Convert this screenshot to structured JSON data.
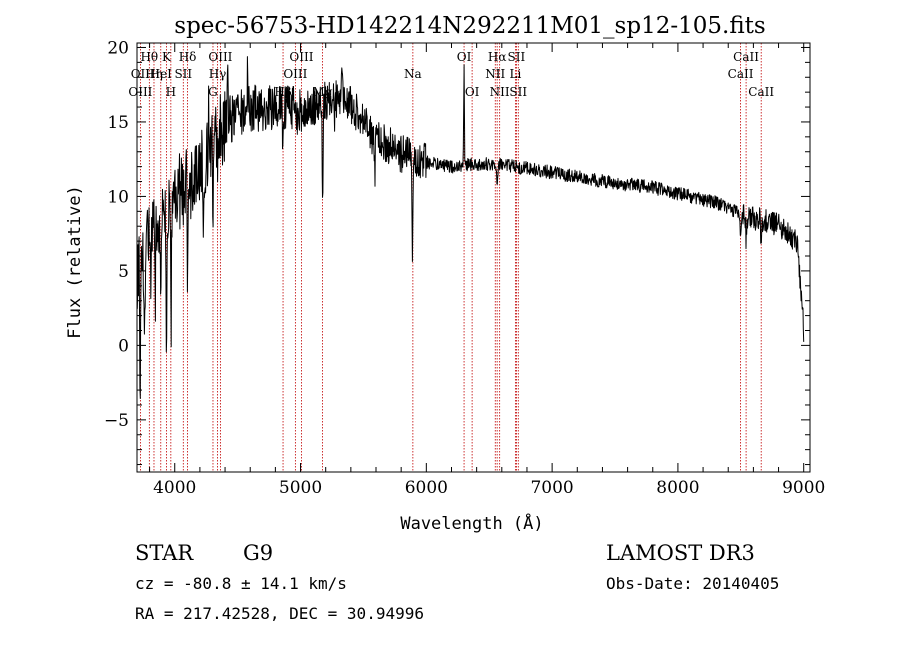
{
  "chart_data": {
    "type": "line",
    "title": "spec-56753-HD142214N292211M01_sp12-105.fits",
    "xlabel": "Wavelength (Å)",
    "ylabel": "Flux (relative)",
    "xlim": [
      3700,
      9050
    ],
    "ylim": [
      -8.5,
      20.3
    ],
    "xticks": [
      4000,
      5000,
      6000,
      7000,
      8000,
      9000
    ],
    "yticks": [
      -5,
      0,
      5,
      10,
      15,
      20
    ],
    "series": [
      {
        "name": "flux",
        "continuum": [
          [
            3700,
            5.0
          ],
          [
            3800,
            7.5
          ],
          [
            3900,
            8.8
          ],
          [
            4000,
            10.0
          ],
          [
            4100,
            10.8
          ],
          [
            4200,
            11.8
          ],
          [
            4300,
            13.3
          ],
          [
            4400,
            15.0
          ],
          [
            4600,
            15.9
          ],
          [
            4800,
            16.0
          ],
          [
            4900,
            16.0
          ],
          [
            5000,
            15.6
          ],
          [
            5100,
            16.0
          ],
          [
            5200,
            16.4
          ],
          [
            5300,
            16.6
          ],
          [
            5400,
            16.2
          ],
          [
            5500,
            14.9
          ],
          [
            5600,
            13.8
          ],
          [
            5700,
            13.4
          ],
          [
            5800,
            12.9
          ],
          [
            5900,
            12.6
          ],
          [
            6000,
            12.3
          ],
          [
            6200,
            12.0
          ],
          [
            6400,
            12.2
          ],
          [
            6600,
            12.1
          ],
          [
            6800,
            11.9
          ],
          [
            7000,
            11.6
          ],
          [
            7200,
            11.3
          ],
          [
            7500,
            10.9
          ],
          [
            7800,
            10.6
          ],
          [
            8000,
            10.2
          ],
          [
            8300,
            9.6
          ],
          [
            8500,
            8.8
          ],
          [
            8800,
            8.1
          ],
          [
            8950,
            6.8
          ],
          [
            9000,
            1.0
          ]
        ],
        "dips": [
          [
            3725,
            7.5
          ],
          [
            3760,
            6.5
          ],
          [
            3810,
            5.5
          ],
          [
            3845,
            6.5
          ],
          [
            3890,
            7.0
          ],
          [
            3935,
            11.0
          ],
          [
            3970,
            9.0
          ],
          [
            4102,
            5.5
          ],
          [
            4226,
            4.0
          ],
          [
            4305,
            4.5
          ],
          [
            4340,
            3.5
          ],
          [
            4861,
            2.5
          ],
          [
            5175,
            7.0
          ],
          [
            5270,
            2.5
          ],
          [
            5590,
            2.5
          ],
          [
            5890,
            7.0
          ],
          [
            6563,
            1.5
          ],
          [
            8498,
            1.5
          ],
          [
            8542,
            1.5
          ],
          [
            8662,
            1.5
          ]
        ],
        "peaks": [
          [
            6300,
            6.5
          ],
          [
            4270,
            3.5
          ],
          [
            4420,
            3.0
          ],
          [
            4580,
            3.0
          ],
          [
            5330,
            2.5
          ]
        ]
      }
    ],
    "annotations": [
      {
        "label": "Hθ",
        "x": 3798,
        "row": 0
      },
      {
        "label": "K",
        "x": 3934,
        "row": 0
      },
      {
        "label": "Hδ",
        "x": 4102,
        "row": 0
      },
      {
        "label": "OIII",
        "x": 4363,
        "row": 0
      },
      {
        "label": "OIII",
        "x": 5007,
        "row": 0
      },
      {
        "label": "OI",
        "x": 6300,
        "row": 0
      },
      {
        "label": "Hα",
        "x": 6563,
        "row": 0
      },
      {
        "label": "SII",
        "x": 6716,
        "row": 0
      },
      {
        "label": "CaII",
        "x": 8542,
        "row": 0
      },
      {
        "label": "OII",
        "x": 3727,
        "row": 1
      },
      {
        "label": "Hη",
        "x": 3835,
        "row": 1
      },
      {
        "label": "HeI",
        "x": 3889,
        "row": 1
      },
      {
        "label": "SII",
        "x": 4068,
        "row": 1
      },
      {
        "label": "Hγ",
        "x": 4340,
        "row": 1
      },
      {
        "label": "OIII",
        "x": 4959,
        "row": 1
      },
      {
        "label": "Na",
        "x": 5893,
        "row": 1
      },
      {
        "label": "NII",
        "x": 6548,
        "row": 1
      },
      {
        "label": "Li",
        "x": 6708,
        "row": 1
      },
      {
        "label": "CaII",
        "x": 8498,
        "row": 1
      },
      {
        "label": "OIII",
        "x": 3727,
        "row": 2
      },
      {
        "label": "H",
        "x": 3969,
        "row": 2
      },
      {
        "label": "G",
        "x": 4304,
        "row": 2
      },
      {
        "label": "Hβ",
        "x": 4861,
        "row": 2
      },
      {
        "label": "Mg",
        "x": 5175,
        "row": 2
      },
      {
        "label": "OI",
        "x": 6364,
        "row": 2
      },
      {
        "label": "NII",
        "x": 6583,
        "row": 2
      },
      {
        "label": "SII",
        "x": 6731,
        "row": 2
      },
      {
        "label": "CaII",
        "x": 8662,
        "row": 2
      }
    ],
    "line_markers": [
      3727,
      3798,
      3835,
      3889,
      3934,
      3969,
      4068,
      4102,
      4304,
      4340,
      4363,
      4861,
      4959,
      5007,
      5175,
      5893,
      6300,
      6364,
      6548,
      6563,
      6583,
      6708,
      6716,
      6731,
      8498,
      8542,
      8662
    ],
    "colors": {
      "line": "#000000",
      "marker": "#c00000",
      "background": "#ffffff"
    }
  },
  "info": {
    "object_class": "STAR",
    "subclass": "G9",
    "survey": "LAMOST DR3",
    "cz": "cz = -80.8 ± 14.1 km/s",
    "obs_date": "Obs-Date: 20140405",
    "coords": "RA = 217.42528, DEC =  30.94996"
  }
}
